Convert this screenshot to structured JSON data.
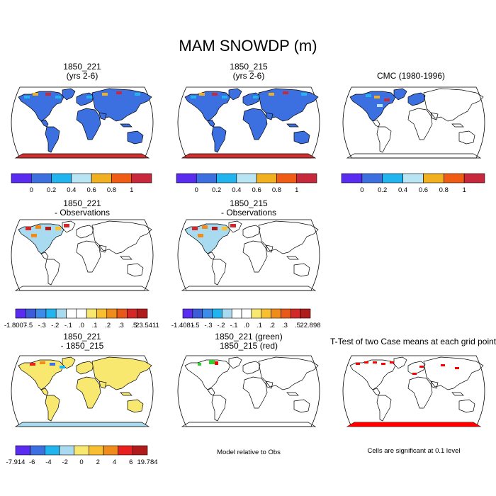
{
  "title": "MAM SNOWDP (m)",
  "colors": {
    "ocean": "#ffffff",
    "land": "#3c6fe0",
    "coast": "#000000",
    "antarctica_hi": "#d03030",
    "diff_land": "#f8e870",
    "sig_red": "#ff0000",
    "sig_green": "#30d030"
  },
  "panels": [
    {
      "id": "p1",
      "title_line1": "1850_221",
      "title_line2": "(yrs 2-6)",
      "kind": "model"
    },
    {
      "id": "p2",
      "title_line1": "1850_215",
      "title_line2": "(yrs 2-6)",
      "kind": "model"
    },
    {
      "id": "p3",
      "title_line1": "CMC (1980-1996)",
      "title_line2": "",
      "kind": "obs"
    },
    {
      "id": "p4",
      "title_line1": "1850_221",
      "title_line2": "- Observations",
      "kind": "bias"
    },
    {
      "id": "p5",
      "title_line1": "1850_215",
      "title_line2": "- Observations",
      "kind": "bias"
    },
    {
      "id": "p7",
      "title_line1": "1850_221",
      "title_line2": "- 1850_215",
      "kind": "diff"
    },
    {
      "id": "p8",
      "title_line1": "1850_221 (green)",
      "title_line2": "1850_215 (red)",
      "kind": "compare"
    },
    {
      "id": "p9",
      "title_line1": "T-Test of two Case means at each grid point",
      "title_line2": "",
      "kind": "ttest"
    }
  ],
  "footnotes": {
    "model_relative": "Model relative to Obs",
    "significance": "Cells are significant at 0.1 level"
  },
  "chart_data": [
    {
      "type": "heatmap",
      "name": "field-colorbar",
      "title": "MAM SNOWDP (m)",
      "colors": [
        "#5a2cf0",
        "#3c6fe0",
        "#22b4ee",
        "#b8e4f4",
        "#f0b020",
        "#f05c14",
        "#c8283c"
      ],
      "tick_labels": [
        "0",
        "0.2",
        "0.4",
        "0.6",
        "0.8",
        "1"
      ],
      "levels": [
        0,
        0.2,
        0.4,
        0.6,
        0.8,
        1
      ]
    },
    {
      "type": "heatmap",
      "name": "bias-colorbar-1850_221",
      "colors": [
        "#5a2cf0",
        "#3c5cd8",
        "#3c8ce8",
        "#22b4ee",
        "#a8daf0",
        "#ffffff",
        "#ffffff",
        "#f8e870",
        "#f8c030",
        "#f08c1c",
        "#e85818",
        "#d42828",
        "#b01c1c"
      ],
      "tick_labels": [
        "-1.8007",
        "-.5",
        "-.3",
        "-.2",
        "-.1",
        ".0",
        ".1",
        ".2",
        ".3",
        ".5",
        "23.5411"
      ],
      "min": -1.8007,
      "max": 23.5411
    },
    {
      "type": "heatmap",
      "name": "bias-colorbar-1850_215",
      "colors": [
        "#5a2cf0",
        "#3c5cd8",
        "#3c8ce8",
        "#22b4ee",
        "#a8daf0",
        "#ffffff",
        "#ffffff",
        "#f8e870",
        "#f8c030",
        "#f08c1c",
        "#e85818",
        "#d42828",
        "#b01c1c"
      ],
      "tick_labels": [
        "-1.4081",
        "-.5",
        "-.3",
        "-.2",
        "-.1",
        ".0",
        ".1",
        ".2",
        ".3",
        ".5",
        "22.898"
      ],
      "min": -1.4081,
      "max": 22.898
    },
    {
      "type": "heatmap",
      "name": "diff-colorbar",
      "colors": [
        "#5a2cf0",
        "#3c6fe0",
        "#22b4ee",
        "#a8daf0",
        "#f8e870",
        "#f8c030",
        "#f08c1c",
        "#e82020",
        "#b01c1c"
      ],
      "tick_labels": [
        "-7.914",
        "-6",
        "-4",
        "-2",
        "0",
        "2",
        "4",
        "6",
        "19.784"
      ],
      "min": -7.914,
      "max": 19.784
    }
  ]
}
